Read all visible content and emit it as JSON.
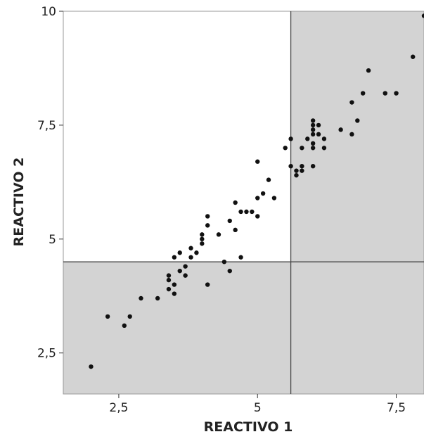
{
  "chart_data": {
    "type": "scatter",
    "title": "",
    "xlabel": "REACTIVO 1",
    "ylabel": "REACTIVO 2",
    "xlim": [
      1.5,
      8.0
    ],
    "ylim": [
      1.6,
      10.0
    ],
    "xticks": [
      2.5,
      5,
      7.5
    ],
    "yticks": [
      2.5,
      5,
      7.5,
      10
    ],
    "xtick_labels": [
      "2,5",
      "5",
      "7,5"
    ],
    "ytick_labels": [
      "2,5",
      "5",
      "7,5",
      "10"
    ],
    "grid": false,
    "reference_lines": {
      "x": 5.6,
      "y": 4.5
    },
    "shaded_quadrants": [
      "bottom-left",
      "top-right",
      "bottom-right"
    ],
    "colors": {
      "shade": "#d3d3d3",
      "point": "#111111",
      "line": "#444444"
    },
    "points": [
      [
        2.0,
        2.2
      ],
      [
        2.3,
        3.3
      ],
      [
        2.6,
        3.1
      ],
      [
        2.7,
        3.3
      ],
      [
        2.9,
        3.7
      ],
      [
        3.2,
        3.7
      ],
      [
        3.4,
        3.9
      ],
      [
        3.4,
        4.1
      ],
      [
        3.4,
        4.2
      ],
      [
        3.5,
        3.8
      ],
      [
        3.5,
        4.0
      ],
      [
        3.5,
        4.6
      ],
      [
        3.6,
        4.3
      ],
      [
        3.6,
        4.7
      ],
      [
        3.7,
        4.2
      ],
      [
        3.7,
        4.4
      ],
      [
        3.8,
        4.6
      ],
      [
        3.8,
        4.8
      ],
      [
        3.9,
        4.7
      ],
      [
        4.0,
        4.9
      ],
      [
        4.0,
        5.0
      ],
      [
        4.0,
        5.1
      ],
      [
        4.1,
        5.3
      ],
      [
        4.1,
        5.5
      ],
      [
        4.1,
        4.0
      ],
      [
        4.3,
        5.1
      ],
      [
        4.4,
        4.5
      ],
      [
        4.5,
        4.3
      ],
      [
        4.5,
        5.4
      ],
      [
        4.6,
        5.2
      ],
      [
        4.6,
        5.8
      ],
      [
        4.7,
        5.6
      ],
      [
        4.7,
        4.6
      ],
      [
        4.8,
        5.6
      ],
      [
        4.9,
        5.6
      ],
      [
        5.0,
        5.5
      ],
      [
        5.0,
        5.9
      ],
      [
        5.0,
        6.7
      ],
      [
        5.1,
        6.0
      ],
      [
        5.2,
        6.3
      ],
      [
        5.3,
        5.9
      ],
      [
        5.5,
        7.0
      ],
      [
        5.6,
        7.2
      ],
      [
        5.6,
        6.6
      ],
      [
        5.7,
        6.4
      ],
      [
        5.7,
        6.5
      ],
      [
        5.8,
        6.6
      ],
      [
        5.8,
        6.5
      ],
      [
        5.8,
        7.0
      ],
      [
        5.9,
        7.2
      ],
      [
        6.0,
        6.6
      ],
      [
        6.0,
        7.0
      ],
      [
        6.0,
        7.1
      ],
      [
        6.0,
        7.3
      ],
      [
        6.0,
        7.4
      ],
      [
        6.0,
        7.5
      ],
      [
        6.0,
        7.6
      ],
      [
        6.1,
        7.3
      ],
      [
        6.1,
        7.5
      ],
      [
        6.2,
        7.0
      ],
      [
        6.2,
        7.2
      ],
      [
        6.5,
        7.4
      ],
      [
        6.7,
        7.3
      ],
      [
        6.7,
        8.0
      ],
      [
        6.8,
        7.6
      ],
      [
        6.9,
        8.2
      ],
      [
        7.0,
        8.7
      ],
      [
        7.3,
        8.2
      ],
      [
        7.5,
        8.2
      ],
      [
        7.8,
        9.0
      ],
      [
        8.0,
        9.9
      ]
    ]
  }
}
